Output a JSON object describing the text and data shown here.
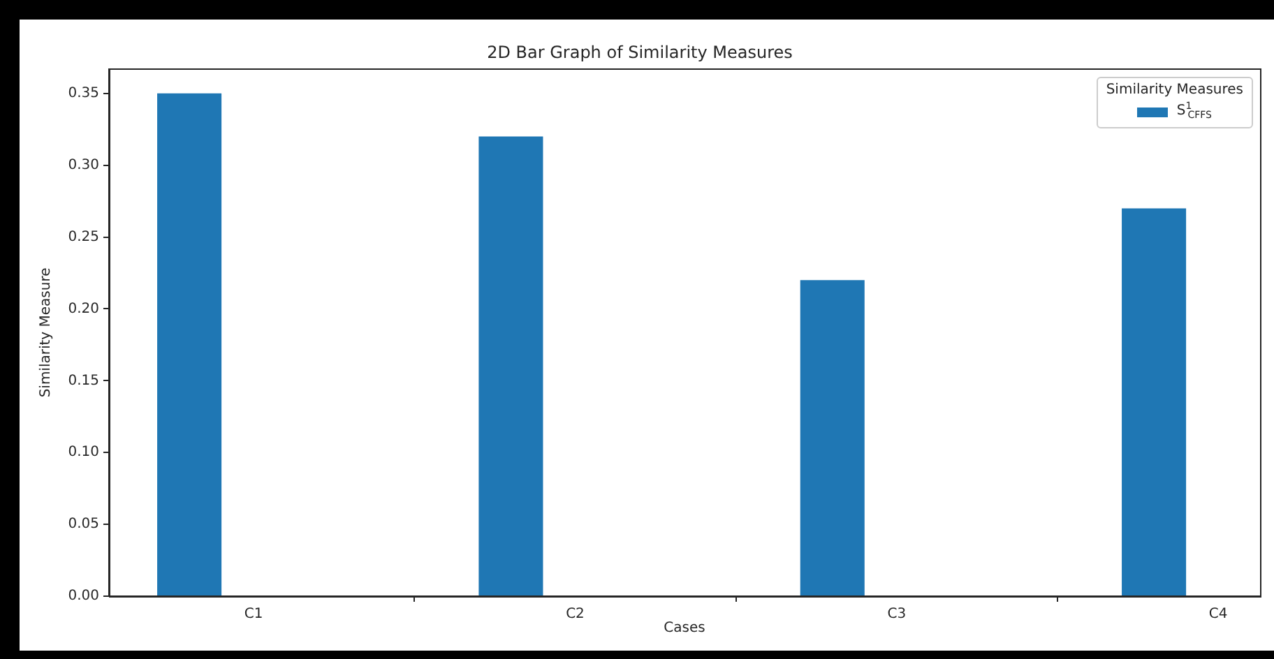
{
  "chart_data": {
    "type": "bar",
    "title": "2D Bar Graph of Similarity Measures",
    "xlabel": "Cases",
    "ylabel": "Similarity Measure",
    "legend_title": "Similarity Measures",
    "categories": [
      "C1",
      "C2",
      "C3",
      "C4"
    ],
    "series": [
      {
        "name": "S$^{1}$$_{CFFS}$",
        "color": "#1f77b4",
        "values": [
          0.35,
          0.32,
          0.22,
          0.27
        ]
      }
    ],
    "ylim": [
      0,
      0.367
    ],
    "yticks": [
      {
        "value": 0,
        "label": "0.00"
      },
      {
        "value": 0.05,
        "label": "0.05"
      },
      {
        "value": 0.1,
        "label": "0.10"
      },
      {
        "value": 0.15,
        "label": "0.15"
      },
      {
        "value": 0.2,
        "label": "0.20"
      },
      {
        "value": 0.25,
        "label": "0.25"
      },
      {
        "value": 0.3,
        "label": "0.30"
      },
      {
        "value": 0.35,
        "label": "0.35"
      }
    ],
    "grid": false,
    "legend": "top right"
  }
}
